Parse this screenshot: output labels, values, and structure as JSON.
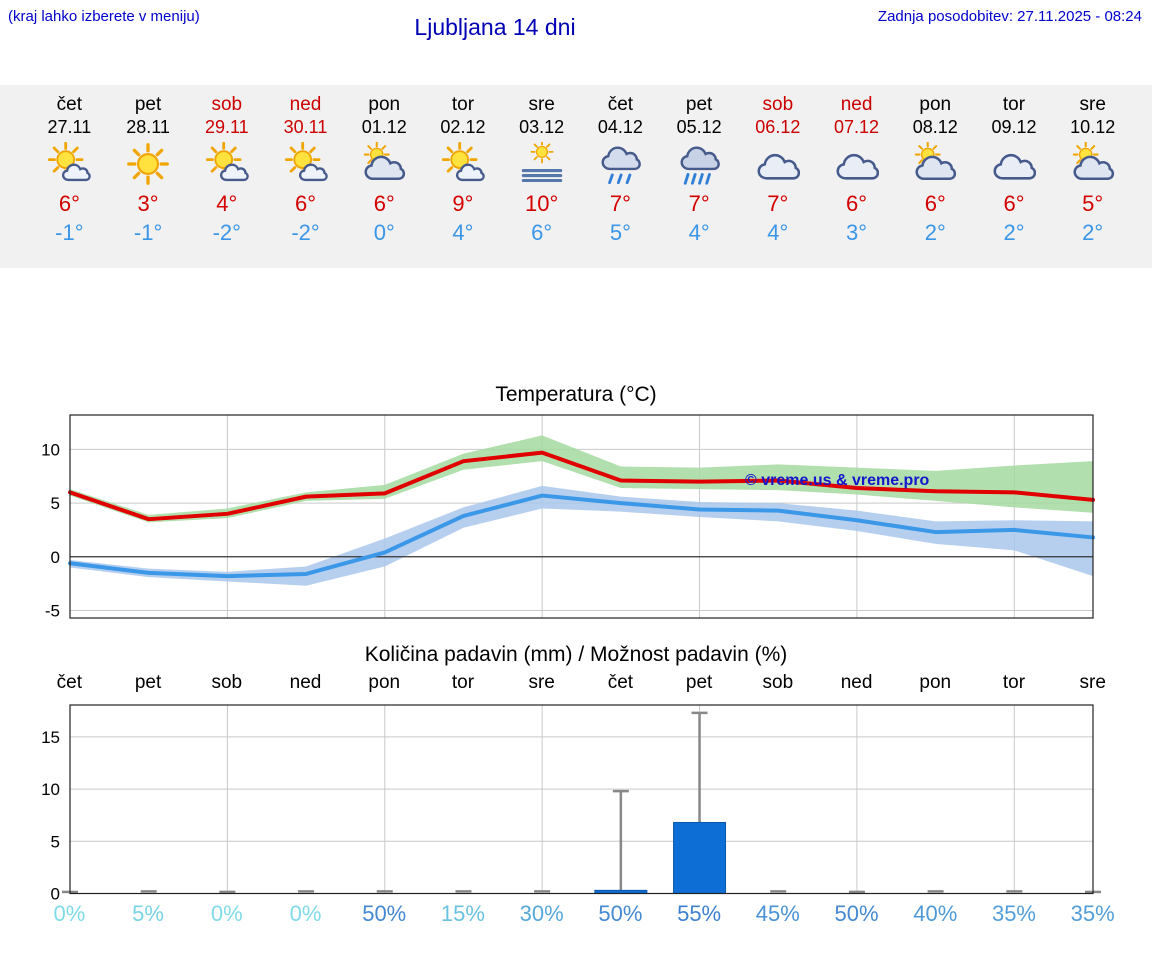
{
  "header": {
    "menu_note": "(kraj lahko izberete v meniju)",
    "title": "Ljubljana 14 dni",
    "last_update": "Zadnja posodobitev: 27.11.2025 - 08:24"
  },
  "colors": {
    "accent_blue": "#0000cc",
    "tmax_red": "#d40000",
    "tmin_blue": "#3a96e8",
    "weekend_red": "#cc0000",
    "strip_bg": "#f1f1f1",
    "bar_blue": "#0d6fd6"
  },
  "forecast": {
    "days": [
      {
        "day": "čet",
        "date": "27.11",
        "weekend": false,
        "icon": "sun-cloud",
        "tmax": "6°",
        "tmin": "-1°"
      },
      {
        "day": "pet",
        "date": "28.11",
        "weekend": false,
        "icon": "sun",
        "tmax": "3°",
        "tmin": "-1°"
      },
      {
        "day": "sob",
        "date": "29.11",
        "weekend": true,
        "icon": "sun-cloud",
        "tmax": "4°",
        "tmin": "-2°"
      },
      {
        "day": "ned",
        "date": "30.11",
        "weekend": true,
        "icon": "sun-cloud",
        "tmax": "6°",
        "tmin": "-2°"
      },
      {
        "day": "pon",
        "date": "01.12",
        "weekend": false,
        "icon": "cloud-sun",
        "tmax": "6°",
        "tmin": "0°"
      },
      {
        "day": "tor",
        "date": "02.12",
        "weekend": false,
        "icon": "sun-cloud",
        "tmax": "9°",
        "tmin": "4°"
      },
      {
        "day": "sre",
        "date": "03.12",
        "weekend": false,
        "icon": "fog",
        "tmax": "10°",
        "tmin": "6°"
      },
      {
        "day": "čet",
        "date": "04.12",
        "weekend": false,
        "icon": "rain",
        "tmax": "7°",
        "tmin": "5°"
      },
      {
        "day": "pet",
        "date": "05.12",
        "weekend": false,
        "icon": "heavy-rain",
        "tmax": "7°",
        "tmin": "4°"
      },
      {
        "day": "sob",
        "date": "06.12",
        "weekend": true,
        "icon": "cloud",
        "tmax": "7°",
        "tmin": "4°"
      },
      {
        "day": "ned",
        "date": "07.12",
        "weekend": true,
        "icon": "cloud",
        "tmax": "6°",
        "tmin": "3°"
      },
      {
        "day": "pon",
        "date": "08.12",
        "weekend": false,
        "icon": "cloud-sun",
        "tmax": "6°",
        "tmin": "2°"
      },
      {
        "day": "tor",
        "date": "09.12",
        "weekend": false,
        "icon": "cloud",
        "tmax": "6°",
        "tmin": "2°"
      },
      {
        "day": "sre",
        "date": "10.12",
        "weekend": false,
        "icon": "cloud-sun",
        "tmax": "5°",
        "tmin": "2°"
      }
    ]
  },
  "chart_data": [
    {
      "type": "line",
      "title": "Temperatura (°C)",
      "watermark": "© vreme.us & vreme.pro",
      "categories": [
        "čet",
        "pet",
        "sob",
        "ned",
        "pon",
        "tor",
        "sre",
        "čet",
        "pet",
        "sob",
        "ned",
        "pon",
        "tor",
        "sre"
      ],
      "ylim": [
        -5.7,
        13.2
      ],
      "yticks": [
        -5,
        0,
        5,
        10
      ],
      "series": [
        {
          "name": "max-temperature",
          "color": "#e10000",
          "values": [
            6.0,
            3.5,
            4.0,
            5.6,
            5.9,
            8.9,
            9.7,
            7.1,
            7.0,
            7.1,
            6.4,
            6.1,
            6.0,
            5.3
          ]
        },
        {
          "name": "min-temperature",
          "color": "#3b97e8",
          "values": [
            -0.6,
            -1.5,
            -1.8,
            -1.6,
            0.4,
            3.8,
            5.7,
            5.0,
            4.4,
            4.3,
            3.4,
            2.3,
            2.5,
            1.8
          ]
        }
      ],
      "bands": [
        {
          "name": "max-temperature-range",
          "color": "#a5d9a0",
          "upper": [
            6.3,
            3.9,
            4.5,
            6.0,
            6.7,
            9.6,
            11.3,
            8.4,
            8.3,
            8.6,
            8.3,
            8.0,
            8.5,
            8.9
          ],
          "lower": [
            5.7,
            3.2,
            3.6,
            5.2,
            5.4,
            8.1,
            8.9,
            6.4,
            6.3,
            6.2,
            5.8,
            5.2,
            4.6,
            4.1
          ]
        },
        {
          "name": "min-temperature-range",
          "color": "#a9c7ec",
          "upper": [
            -0.3,
            -1.1,
            -1.4,
            -0.9,
            1.7,
            4.6,
            6.6,
            5.6,
            5.1,
            5.0,
            4.3,
            3.3,
            3.4,
            3.3
          ],
          "lower": [
            -1.0,
            -1.9,
            -2.3,
            -2.7,
            -0.9,
            2.7,
            4.5,
            4.2,
            3.7,
            3.3,
            2.4,
            1.2,
            0.6,
            -1.8
          ]
        }
      ]
    },
    {
      "type": "bar",
      "title": "Količina padavin (mm) / Možnost padavin (%)",
      "categories": [
        "čet",
        "pet",
        "sob",
        "ned",
        "pon",
        "tor",
        "sre",
        "čet",
        "pet",
        "sob",
        "ned",
        "pon",
        "tor",
        "sre"
      ],
      "values": [
        0,
        0,
        0,
        0,
        0,
        0,
        0,
        0.3,
        6.8,
        0,
        0,
        0,
        0,
        0
      ],
      "whiskers": [
        0.15,
        0.2,
        0.15,
        0.2,
        0.2,
        0.2,
        0.2,
        9.8,
        17.3,
        0.2,
        0.15,
        0.2,
        0.2,
        0.15
      ],
      "ylim": [
        0,
        18.05
      ],
      "yticks": [
        0,
        5,
        10,
        15
      ],
      "probabilities": [
        {
          "label": "0%",
          "color": "#7fdbe8"
        },
        {
          "label": "5%",
          "color": "#79d3e5"
        },
        {
          "label": "0%",
          "color": "#7fdbe8"
        },
        {
          "label": "0%",
          "color": "#7fdbe8"
        },
        {
          "label": "50%",
          "color": "#4489d1"
        },
        {
          "label": "15%",
          "color": "#6bc2e0"
        },
        {
          "label": "30%",
          "color": "#57a8da"
        },
        {
          "label": "50%",
          "color": "#4489d1"
        },
        {
          "label": "55%",
          "color": "#3f81ce"
        },
        {
          "label": "45%",
          "color": "#4a92d4"
        },
        {
          "label": "50%",
          "color": "#4489d1"
        },
        {
          "label": "40%",
          "color": "#4f9ad6"
        },
        {
          "label": "35%",
          "color": "#539ed8"
        },
        {
          "label": "35%",
          "color": "#539ed8"
        }
      ]
    }
  ]
}
